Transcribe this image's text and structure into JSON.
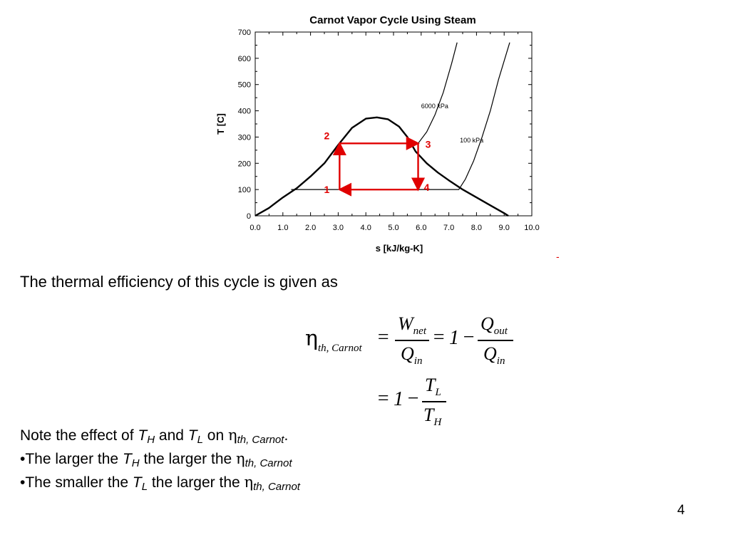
{
  "chart_data": {
    "type": "line",
    "title": "Carnot Vapor Cycle Using Steam",
    "xlabel": "s [kJ/kg-K]",
    "ylabel": "T [C]",
    "xlim": [
      0,
      10
    ],
    "ylim": [
      0,
      700
    ],
    "x_ticks": [
      "0.0",
      "1.0",
      "2.0",
      "3.0",
      "4.0",
      "5.0",
      "6.0",
      "7.0",
      "8.0",
      "9.0",
      "10.0"
    ],
    "y_ticks": [
      "0",
      "100",
      "200",
      "300",
      "400",
      "500",
      "600",
      "700"
    ],
    "series": [
      {
        "kind": "saturation-dome",
        "x": [
          0.0,
          0.5,
          1.0,
          1.5,
          2.0,
          2.5,
          3.0,
          3.5,
          4.0,
          4.4,
          4.8,
          5.2,
          5.5,
          5.8,
          6.2,
          6.6,
          7.0,
          7.5,
          8.0,
          8.5,
          9.0,
          9.15
        ],
        "y": [
          0,
          30,
          70,
          105,
          150,
          200,
          270,
          335,
          370,
          375,
          368,
          340,
          300,
          245,
          200,
          165,
          135,
          100,
          70,
          40,
          10,
          0
        ]
      },
      {
        "kind": "isobar",
        "label": "6000 kPa",
        "x": [
          5.89,
          6.2,
          6.5,
          6.8,
          7.1,
          7.3
        ],
        "y": [
          276,
          320,
          385,
          470,
          580,
          660
        ]
      },
      {
        "kind": "isobar",
        "label": "100 kPa",
        "x": [
          1.3,
          7.36,
          7.6,
          7.9,
          8.2,
          8.5,
          8.8,
          9.2
        ],
        "y": [
          100,
          100,
          140,
          210,
          300,
          400,
          520,
          660
        ]
      }
    ],
    "cycle": {
      "color": "#e00000",
      "points": [
        {
          "label": "1",
          "x": 3.05,
          "y": 100
        },
        {
          "label": "2",
          "x": 3.05,
          "y": 276
        },
        {
          "label": "3",
          "x": 5.89,
          "y": 276
        },
        {
          "label": "4",
          "x": 5.89,
          "y": 100
        }
      ]
    }
  },
  "text": {
    "dash": "-",
    "intro": "The thermal efficiency of this cycle is given as",
    "eq": {
      "eta": "η",
      "eta_sub": "th, Carnot",
      "eq1": "=",
      "w": "W",
      "w_sub": "net",
      "q_in_top": "Q",
      "q_in_top_sub": "in",
      "eq2": "=",
      "one1": "1",
      "minus1": "−",
      "q_out": "Q",
      "q_out_sub": "out",
      "q_in_2": "Q",
      "q_in_2_sub": "in",
      "eq3": "=",
      "one2": "1",
      "minus2": "−",
      "t_l": "T",
      "t_l_sub": "L",
      "t_h": "T",
      "t_h_sub": "H"
    },
    "notes": {
      "l1a": "Note the effect of ",
      "l1_T": "T",
      "l1_Tsub": "H",
      "l1b": " and ",
      "l1_T2": "T",
      "l1_T2sub": "L",
      "l1c": " on ",
      "l1_eta": "η",
      "l1_etasub": "th, Carnot",
      "l1d": ".",
      "l2a": "•The larger the ",
      "l2_T": "T",
      "l2_Tsub": "H",
      "l2b": " the larger the  ",
      "l2_eta": "η",
      "l2_etasub": "th, Carnot",
      "l3a": "•The smaller the ",
      "l3_T": "T",
      "l3_Tsub": "L",
      "l3b": " the larger the ",
      "l3_eta": "η",
      "l3_etasub": "th, Carnot"
    },
    "page_number": "4"
  }
}
